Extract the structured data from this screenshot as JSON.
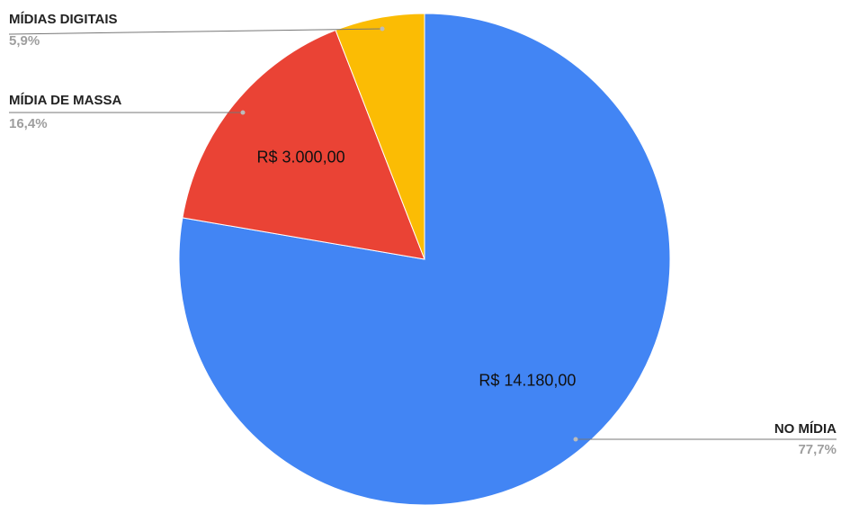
{
  "chart_data": {
    "type": "pie",
    "categories": [
      "NO  MÍDIA",
      "MÍDIA DE MASSA",
      "MÍDIAS DIGITAIS"
    ],
    "values": [
      77.7,
      16.4,
      5.9
    ],
    "value_labels": [
      "77,7%",
      "16,4%",
      "5,9%"
    ],
    "amounts": [
      14180,
      3000,
      null
    ],
    "amount_labels": [
      "R$ 14.180,00",
      "R$ 3.000,00",
      null
    ],
    "colors": [
      "#4285f4",
      "#ea4335",
      "#fbbc04"
    ]
  }
}
